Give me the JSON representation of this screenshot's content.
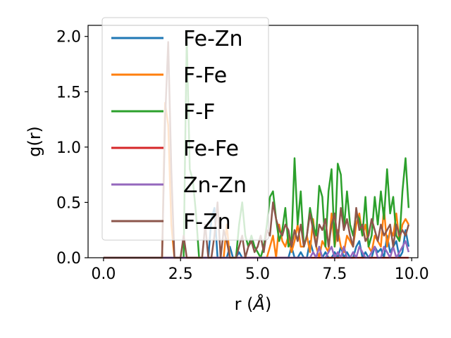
{
  "chart_data": {
    "type": "line",
    "xlabel": "r (",
    "xlabel_unit": "Å",
    "xlabel_close": ")",
    "ylabel": "g(r)",
    "xlim": [
      -0.5,
      10.2
    ],
    "ylim": [
      0,
      2.1
    ],
    "xticks": [
      0.0,
      2.5,
      5.0,
      7.5,
      10.0
    ],
    "xtick_labels": [
      "0.0",
      "2.5",
      "5.0",
      "7.5",
      "10.0"
    ],
    "yticks": [
      0.0,
      0.5,
      1.0,
      1.5,
      2.0
    ],
    "ytick_labels": [
      "0.0",
      "0.5",
      "1.0",
      "1.5",
      "2.0"
    ],
    "grid": false,
    "legend_position": "upper-left",
    "x": [
      0.0,
      0.1,
      0.2,
      0.3,
      0.4,
      0.5,
      0.6,
      0.7,
      0.8,
      0.9,
      1.0,
      1.1,
      1.2,
      1.3,
      1.4,
      1.5,
      1.6,
      1.7,
      1.8,
      1.9,
      2.0,
      2.1,
      2.2,
      2.3,
      2.4,
      2.5,
      2.6,
      2.7,
      2.8,
      2.9,
      3.0,
      3.1,
      3.2,
      3.3,
      3.4,
      3.5,
      3.6,
      3.7,
      3.8,
      3.9,
      4.0,
      4.1,
      4.2,
      4.3,
      4.4,
      4.5,
      4.6,
      4.7,
      4.8,
      4.9,
      5.0,
      5.1,
      5.2,
      5.3,
      5.4,
      5.5,
      5.6,
      5.7,
      5.8,
      5.9,
      6.0,
      6.1,
      6.2,
      6.3,
      6.4,
      6.5,
      6.6,
      6.7,
      6.8,
      6.9,
      7.0,
      7.1,
      7.2,
      7.3,
      7.4,
      7.5,
      7.6,
      7.7,
      7.8,
      7.9,
      8.0,
      8.1,
      8.2,
      8.3,
      8.4,
      8.5,
      8.6,
      8.7,
      8.8,
      8.9,
      9.0,
      9.1,
      9.2,
      9.3,
      9.4,
      9.5,
      9.6,
      9.7,
      9.8,
      9.9
    ],
    "series": [
      {
        "name": "Fe-Zn",
        "color": "#1f77b4",
        "values": [
          0,
          0,
          0,
          0,
          0,
          0,
          0,
          0,
          0,
          0,
          0,
          0,
          0,
          0,
          0,
          0,
          0,
          0,
          0,
          0,
          0,
          0,
          0,
          0,
          0,
          0,
          0,
          0,
          0,
          0,
          0,
          0,
          0,
          0,
          0,
          0.35,
          0.45,
          0,
          0,
          0,
          0,
          0.1,
          0,
          0,
          0.05,
          0,
          0,
          0,
          0,
          0,
          0,
          0,
          0,
          0,
          0,
          0,
          0,
          0,
          0,
          0,
          0,
          0.1,
          0,
          0,
          0.05,
          0,
          0,
          0.15,
          0.05,
          0,
          0.1,
          0,
          0.05,
          0,
          0,
          0.05,
          0,
          0.1,
          0,
          0.05,
          0,
          0,
          0.1,
          0.15,
          0,
          0.05,
          0,
          0,
          0.1,
          0.05,
          0.08,
          0,
          0.2,
          0.05,
          0.1,
          0.15,
          0,
          0.05,
          0.25,
          0.1
        ]
      },
      {
        "name": "F-Fe",
        "color": "#ff7f0e",
        "values": [
          0,
          0,
          0,
          0,
          0,
          0,
          0,
          0,
          0,
          0,
          0,
          0,
          0,
          0,
          0,
          0,
          0,
          0,
          0,
          0,
          1.4,
          1.2,
          0.3,
          0,
          0,
          0,
          0,
          0,
          0,
          0,
          0,
          0,
          0,
          0,
          0,
          0,
          0,
          0,
          0,
          0,
          0.3,
          0,
          0,
          0,
          0,
          0,
          0,
          0,
          0,
          0,
          0,
          0,
          0,
          0,
          0.1,
          0.2,
          0,
          0.3,
          0.15,
          0.1,
          0.2,
          0.05,
          0.15,
          0.3,
          0.1,
          0.1,
          0.2,
          0.05,
          0.35,
          0.1,
          0,
          0.15,
          0.1,
          0.05,
          0.4,
          0.1,
          0.25,
          0.1,
          0.05,
          0.2,
          0.15,
          0.1,
          0.3,
          0.4,
          0.2,
          0.3,
          0.1,
          0.05,
          0.2,
          0.15,
          0.1,
          0.45,
          0.1,
          0.25,
          0.2,
          0.4,
          0.15,
          0.3,
          0.35,
          0.3
        ]
      },
      {
        "name": "F-F",
        "color": "#2ca02c",
        "values": [
          0,
          0,
          0,
          0,
          0,
          0,
          0,
          0,
          0,
          0,
          0,
          0,
          0,
          0,
          0,
          0,
          0,
          0,
          0,
          0,
          0,
          0,
          0,
          0,
          0,
          0,
          0,
          2.0,
          0.8,
          0.7,
          0.4,
          0,
          0,
          0,
          0,
          0,
          0,
          0,
          0,
          0,
          0,
          0,
          0,
          0,
          0.3,
          0.5,
          0.2,
          0.1,
          0.2,
          0.1,
          0.05,
          0,
          0.1,
          0.3,
          0.55,
          0.6,
          0.35,
          0.15,
          0.25,
          0.45,
          0.1,
          0.15,
          0.9,
          0.3,
          0.6,
          0.1,
          0.2,
          0.45,
          0.3,
          0.2,
          0.65,
          0.55,
          0.1,
          0.6,
          0.8,
          0.1,
          0.85,
          0.75,
          0.25,
          0.6,
          0.3,
          0.2,
          0.4,
          0.35,
          0.2,
          0.55,
          0.1,
          0.2,
          0.55,
          0.3,
          0.6,
          0.35,
          0.8,
          0.4,
          0.55,
          0.2,
          0.15,
          0.6,
          0.9,
          0.45
        ]
      },
      {
        "name": "Fe-Fe",
        "color": "#d62728",
        "values": [
          0,
          0,
          0,
          0,
          0,
          0,
          0,
          0,
          0,
          0,
          0,
          0,
          0,
          0,
          0,
          0,
          0,
          0,
          0,
          0,
          0,
          0,
          0,
          0,
          0,
          0,
          0,
          0,
          0,
          0,
          0,
          0,
          0,
          0,
          0,
          0,
          0,
          0,
          0,
          0,
          0,
          0,
          0,
          0,
          0,
          0,
          0,
          0,
          0,
          0,
          0,
          0,
          0,
          0,
          0,
          0,
          0,
          0,
          0,
          0,
          0,
          0,
          0,
          0,
          0,
          0,
          0,
          0,
          0,
          0,
          0,
          0,
          0,
          0,
          0,
          0,
          0,
          0,
          0,
          0,
          0,
          0,
          0,
          0,
          0,
          0,
          0,
          0,
          0,
          0,
          0,
          0,
          0,
          0,
          0,
          0,
          0,
          0,
          0,
          0
        ]
      },
      {
        "name": "Zn-Zn",
        "color": "#9467bd",
        "values": [
          0,
          0,
          0,
          0,
          0,
          0,
          0,
          0,
          0,
          0,
          0,
          0,
          0,
          0,
          0,
          0,
          0,
          0,
          0,
          0,
          0,
          0,
          0,
          0,
          0,
          0,
          0,
          0,
          0,
          0,
          0,
          0,
          0,
          0,
          0,
          0,
          0,
          0,
          0,
          0,
          0,
          0,
          0,
          0,
          0,
          0,
          0,
          0,
          0,
          0,
          0,
          0,
          0,
          0,
          0,
          0,
          0,
          0,
          0,
          0,
          0,
          0,
          0,
          0,
          0,
          0,
          0,
          0,
          0.05,
          0,
          0.1,
          0,
          0,
          0.05,
          0.1,
          0,
          0.05,
          0,
          0.1,
          0,
          0,
          0.05,
          0,
          0.1,
          0.05,
          0,
          0,
          0.05,
          0.1,
          0,
          0,
          0.1,
          0.05,
          0,
          0.1,
          0,
          0.05,
          0.1,
          0.15,
          0.05
        ]
      },
      {
        "name": "F-Zn",
        "color": "#8c564b",
        "values": [
          0,
          0,
          0,
          0,
          0,
          0,
          0,
          0,
          0,
          0,
          0,
          0,
          0,
          0,
          0,
          0,
          0,
          0,
          0,
          0,
          1.25,
          1.95,
          0.8,
          0,
          0,
          0,
          0.2,
          0,
          0,
          0,
          0,
          0,
          0,
          0.3,
          0,
          0,
          0.2,
          0.5,
          0,
          0.25,
          0.15,
          0,
          0,
          0,
          0.1,
          0.2,
          0,
          0.1,
          0.15,
          0.05,
          0.1,
          0.2,
          0.05,
          0.25,
          0.2,
          0.5,
          0.35,
          0.25,
          0.2,
          0.3,
          0.25,
          0.1,
          0.25,
          0.15,
          0.3,
          0.1,
          0.2,
          0.4,
          0.25,
          0.1,
          0.3,
          0.25,
          0.35,
          0.1,
          0.3,
          0.4,
          0.15,
          0.45,
          0.25,
          0.35,
          0.2,
          0.1,
          0.45,
          0.25,
          0.3,
          0.15,
          0.2,
          0.35,
          0.25,
          0.15,
          0.3,
          0.2,
          0.25,
          0.3,
          0.1,
          0.3,
          0.2,
          0.25,
          0.2,
          0.3
        ]
      }
    ]
  }
}
